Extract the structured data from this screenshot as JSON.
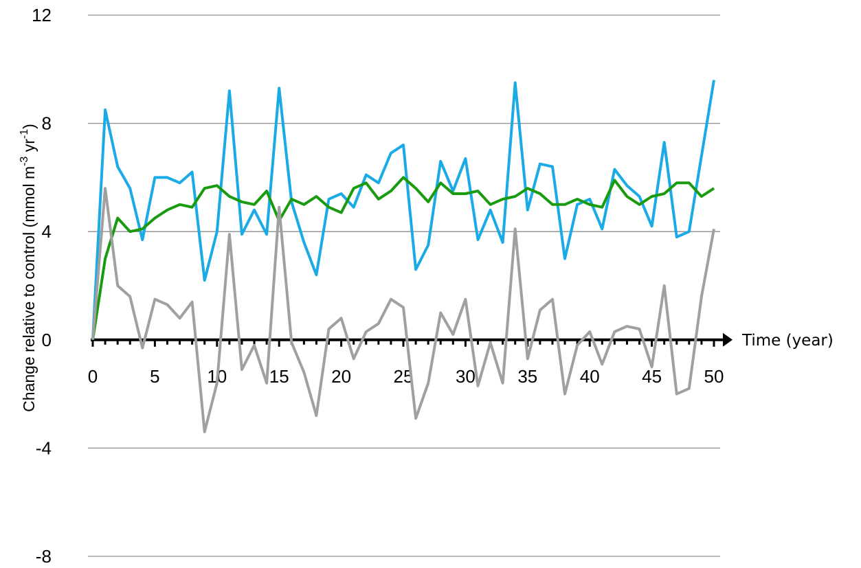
{
  "chart_data": {
    "type": "line",
    "xlabel": "Time (year)",
    "ylabel_parts": [
      "Change relative to control (mmol m",
      "-3",
      " yr",
      "-1",
      ")"
    ],
    "xlim": [
      0,
      50
    ],
    "ylim": [
      -8,
      12
    ],
    "yticks": [
      12,
      8,
      4,
      0,
      -4,
      -8
    ],
    "xticks": [
      0,
      5,
      10,
      15,
      20,
      25,
      30,
      35,
      40,
      45,
      50
    ],
    "grid": true,
    "series": [
      {
        "color": "#1aaae6",
        "values": [
          0,
          8.5,
          6.4,
          5.6,
          3.7,
          6.0,
          6.0,
          5.8,
          6.2,
          2.2,
          4.0,
          9.2,
          3.9,
          4.8,
          3.9,
          9.3,
          5.1,
          3.6,
          2.4,
          5.2,
          5.4,
          4.9,
          6.1,
          5.8,
          6.9,
          7.2,
          2.6,
          3.5,
          6.6,
          5.5,
          6.7,
          3.7,
          4.8,
          3.6,
          9.5,
          4.8,
          6.5,
          6.4,
          3.0,
          5.0,
          5.2,
          4.1,
          6.3,
          5.7,
          5.3,
          4.2,
          7.3,
          3.8,
          4.0,
          6.8,
          9.6
        ]
      },
      {
        "color": "#1a9a0e",
        "values": [
          0,
          3.0,
          4.5,
          4.0,
          4.1,
          4.5,
          4.8,
          5.0,
          4.9,
          5.6,
          5.7,
          5.3,
          5.1,
          5.0,
          5.5,
          4.4,
          5.2,
          5.0,
          5.3,
          4.9,
          4.7,
          5.6,
          5.8,
          5.2,
          5.5,
          6.0,
          5.6,
          5.1,
          5.8,
          5.4,
          5.4,
          5.5,
          5.0,
          5.2,
          5.3,
          5.6,
          5.4,
          5.0,
          5.0,
          5.2,
          5.0,
          4.9,
          5.9,
          5.3,
          5.0,
          5.3,
          5.4,
          5.8,
          5.8,
          5.3,
          5.6
        ]
      },
      {
        "color": "#a0a0a0",
        "values": [
          0,
          5.6,
          2.0,
          1.6,
          -0.3,
          1.5,
          1.3,
          0.8,
          1.4,
          -3.4,
          -1.6,
          3.9,
          -1.1,
          -0.2,
          -1.6,
          4.9,
          -0.1,
          -1.2,
          -2.8,
          0.4,
          0.8,
          -0.7,
          0.3,
          0.6,
          1.5,
          1.2,
          -2.9,
          -1.6,
          1.0,
          0.2,
          1.5,
          -1.7,
          -0.1,
          -1.6,
          4.1,
          -0.7,
          1.1,
          1.5,
          -2.0,
          -0.2,
          0.3,
          -0.9,
          0.3,
          0.5,
          0.4,
          -1.0,
          2.0,
          -2.0,
          -1.8,
          1.6,
          4.1
        ]
      }
    ]
  }
}
